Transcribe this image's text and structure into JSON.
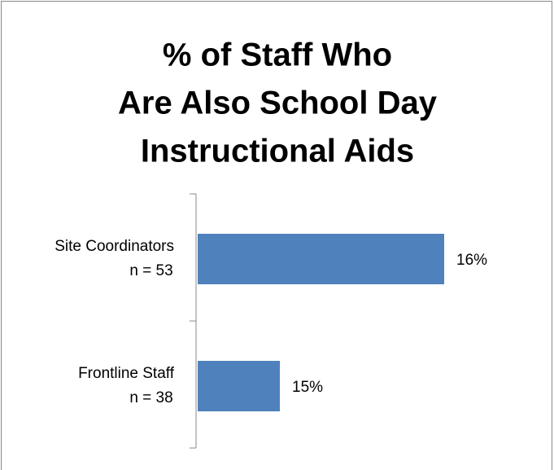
{
  "chart_data": {
    "type": "bar",
    "orientation": "horizontal",
    "title": [
      "% of Staff Who",
      "Are Also School Day",
      "Instructional Aids"
    ],
    "categories": [
      [
        "Site Coordinators",
        "n = 53"
      ],
      [
        "Frontline Staff",
        "n = 38"
      ]
    ],
    "values": [
      16,
      15
    ],
    "value_labels": [
      "16%",
      "15%"
    ],
    "color": "#4f81bd",
    "xlim": [
      14.5,
      16.5
    ]
  }
}
